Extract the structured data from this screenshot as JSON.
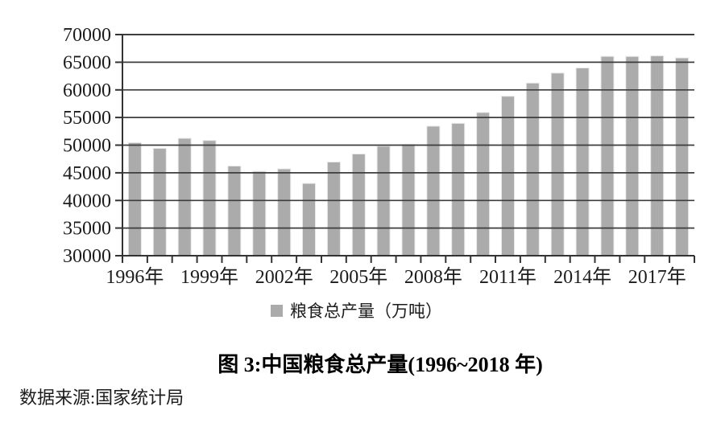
{
  "figure": {
    "caption": "图 3:中国粮食总产量(1996~2018 年)",
    "source_note": "数据来源:国家统计局"
  },
  "legend": {
    "label": "粮食总产量（万吨）",
    "swatch_color": "#ababab"
  },
  "chart_data": {
    "type": "bar",
    "title": "图 3:中国粮食总产量(1996~2018 年)",
    "series_name": "粮食总产量（万吨）",
    "xlabel": "",
    "ylabel": "",
    "categories": [
      "1996",
      "1997",
      "1998",
      "1999",
      "2000",
      "2001",
      "2002",
      "2003",
      "2004",
      "2005",
      "2006",
      "2007",
      "2008",
      "2009",
      "2010",
      "2011",
      "2012",
      "2013",
      "2014",
      "2015",
      "2016",
      "2017",
      "2018"
    ],
    "values": [
      50454,
      49417,
      51230,
      50839,
      46218,
      45264,
      45706,
      43070,
      46947,
      48402,
      49804,
      50160,
      53434,
      53941,
      55911,
      58849,
      61223,
      63048,
      63965,
      66060,
      66044,
      66161,
      65789
    ],
    "ylim": [
      30000,
      70000
    ],
    "yticks": [
      30000,
      35000,
      40000,
      45000,
      50000,
      55000,
      60000,
      65000,
      70000
    ],
    "xtick_labels": [
      "1996年",
      "1999年",
      "2002年",
      "2005年",
      "2008年",
      "2011年",
      "2014年",
      "2017年"
    ],
    "xtick_indices": [
      0,
      3,
      6,
      9,
      12,
      15,
      18,
      21
    ],
    "grid": true,
    "legend_position": "bottom",
    "bar_color": "#ababab",
    "bar_edge_color": "#e8e8e8",
    "gridline_color": "#3d3d3d",
    "axis_color": "#333333",
    "text_color": "#1c1c1c"
  }
}
